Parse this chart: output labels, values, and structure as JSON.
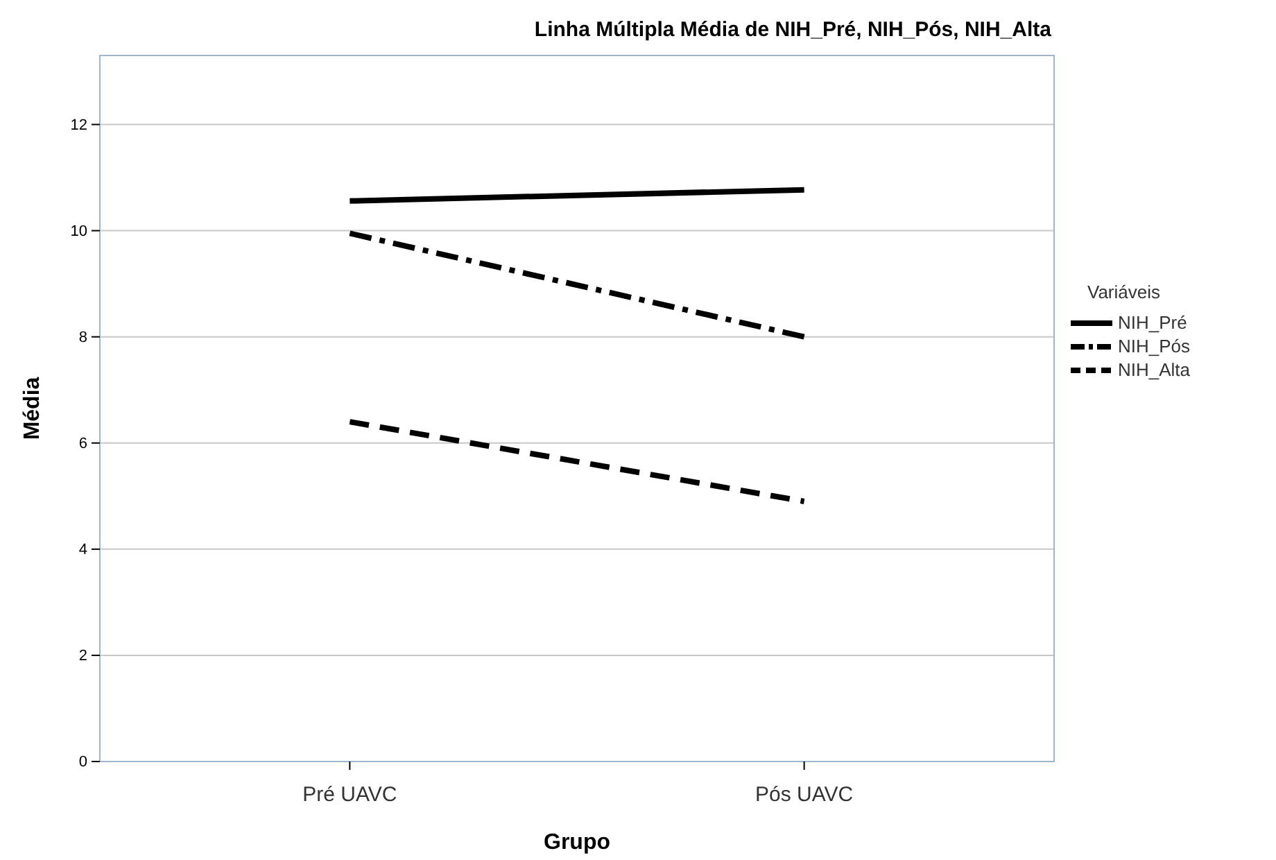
{
  "chart_data": {
    "type": "line",
    "title": "Linha Múltipla Média de NIH_Pré,  NIH_Pós,  NIH_Alta",
    "xlabel": "Grupo",
    "ylabel": "Média",
    "categories": [
      "Pré UAVC",
      "Pós UAVC"
    ],
    "series": [
      {
        "name": "NIH_Pré",
        "color": "#000000",
        "line_style": "solid",
        "values": [
          10.56,
          10.77
        ]
      },
      {
        "name": "NIH_Pós",
        "color": "#000000",
        "line_style": "dashdot",
        "values": [
          9.95,
          8.0
        ]
      },
      {
        "name": "NIH_Alta",
        "color": "#000000",
        "line_style": "dashed",
        "values": [
          6.4,
          4.9
        ]
      }
    ],
    "ylim": [
      0,
      13.3
    ],
    "yticks": [
      0,
      2,
      4,
      6,
      8,
      10,
      12
    ],
    "grid": "y",
    "legend": "right",
    "legend_title": "Variáveis"
  }
}
